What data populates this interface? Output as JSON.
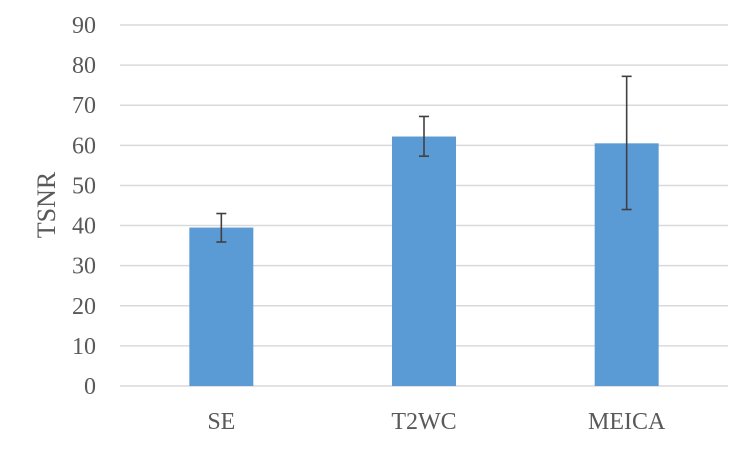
{
  "chart_data": {
    "type": "bar",
    "title": "",
    "xlabel": "",
    "ylabel": "TSNR",
    "categories": [
      "SE",
      "T2WC",
      "MEICA"
    ],
    "values": [
      39.5,
      62.2,
      60.5
    ],
    "error_low": [
      35.9,
      57.3,
      44.0
    ],
    "error_high": [
      43.0,
      67.2,
      77.2
    ],
    "ylim": [
      0,
      90
    ],
    "yticks": [
      0,
      10,
      20,
      30,
      40,
      50,
      60,
      70,
      80,
      90
    ],
    "grid": true,
    "legend": "none",
    "colors": {
      "bar": "#5b9bd5",
      "errorbar": "#404040",
      "grid": "#d9d9d9",
      "text": "#595959"
    }
  }
}
